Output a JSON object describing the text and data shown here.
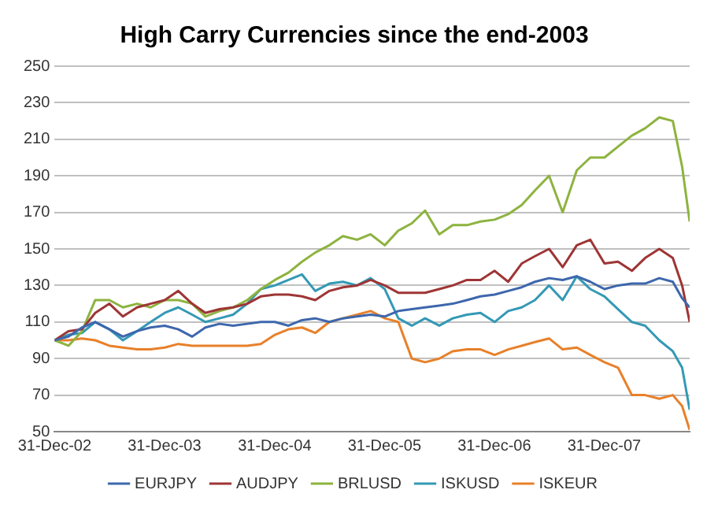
{
  "chart_data": {
    "type": "line",
    "title": "High Carry Currencies since the end-2003",
    "x": [
      "2002-12-31",
      "2003-02-15",
      "2003-04-01",
      "2003-05-15",
      "2003-07-01",
      "2003-08-15",
      "2003-10-01",
      "2003-11-15",
      "2004-01-01",
      "2004-02-15",
      "2004-04-01",
      "2004-05-15",
      "2004-07-01",
      "2004-08-15",
      "2004-10-01",
      "2004-11-15",
      "2005-01-01",
      "2005-02-15",
      "2005-04-01",
      "2005-05-15",
      "2005-07-01",
      "2005-08-15",
      "2005-10-01",
      "2005-11-15",
      "2006-01-01",
      "2006-02-15",
      "2006-04-01",
      "2006-05-15",
      "2006-07-01",
      "2006-08-15",
      "2006-10-01",
      "2006-11-15",
      "2007-01-01",
      "2007-02-15",
      "2007-04-01",
      "2007-05-15",
      "2007-07-01",
      "2007-08-15",
      "2007-10-01",
      "2007-11-15",
      "2008-01-01",
      "2008-02-15",
      "2008-04-01",
      "2008-05-15",
      "2008-07-01",
      "2008-08-15",
      "2008-09-15",
      "2008-10-10"
    ],
    "series": [
      {
        "name": "EURJPY",
        "color": "#3d67ad",
        "values": [
          100,
          102,
          107,
          110,
          106,
          102,
          105,
          107,
          108,
          106,
          102,
          107,
          109,
          108,
          109,
          110,
          110,
          108,
          111,
          112,
          110,
          112,
          113,
          114,
          113,
          116,
          117,
          118,
          119,
          120,
          122,
          124,
          125,
          127,
          129,
          132,
          134,
          133,
          135,
          132,
          128,
          130,
          131,
          131,
          134,
          132,
          123,
          118
        ]
      },
      {
        "name": "AUDJPY",
        "color": "#9e3535",
        "values": [
          100,
          105,
          106,
          115,
          120,
          113,
          118,
          120,
          122,
          127,
          120,
          115,
          117,
          118,
          120,
          124,
          125,
          125,
          124,
          122,
          127,
          129,
          130,
          133,
          130,
          126,
          126,
          126,
          128,
          130,
          133,
          133,
          138,
          132,
          142,
          146,
          150,
          140,
          152,
          155,
          142,
          143,
          138,
          145,
          150,
          145,
          130,
          110
        ]
      },
      {
        "name": "BRLUSD",
        "color": "#8db33f",
        "values": [
          100,
          97,
          105,
          122,
          122,
          118,
          120,
          118,
          122,
          122,
          120,
          113,
          116,
          118,
          122,
          128,
          133,
          137,
          143,
          148,
          152,
          157,
          155,
          158,
          152,
          160,
          164,
          171,
          158,
          163,
          163,
          165,
          166,
          169,
          174,
          182,
          190,
          170,
          193,
          200,
          200,
          206,
          212,
          216,
          222,
          220,
          195,
          165
        ]
      },
      {
        "name": "ISKUSD",
        "color": "#3399b5",
        "values": [
          100,
          103,
          104,
          110,
          106,
          100,
          105,
          110,
          115,
          118,
          114,
          110,
          112,
          114,
          120,
          128,
          130,
          133,
          136,
          127,
          131,
          132,
          130,
          134,
          128,
          112,
          108,
          112,
          108,
          112,
          114,
          115,
          110,
          116,
          118,
          122,
          130,
          122,
          135,
          128,
          124,
          117,
          110,
          108,
          100,
          94,
          85,
          62
        ]
      },
      {
        "name": "ISKEUR",
        "color": "#e8802a",
        "values": [
          100,
          100,
          101,
          100,
          97,
          96,
          95,
          95,
          96,
          98,
          97,
          97,
          97,
          97,
          97,
          98,
          103,
          106,
          107,
          104,
          110,
          112,
          114,
          116,
          112,
          110,
          90,
          88,
          90,
          94,
          95,
          95,
          92,
          95,
          97,
          99,
          101,
          95,
          96,
          92,
          88,
          85,
          70,
          70,
          68,
          70,
          64,
          51
        ]
      }
    ],
    "xlim": [
      "2002-12-31",
      "2008-10-10"
    ],
    "xticks": [
      {
        "value": "2002-12-31",
        "label": "31-Dec-02"
      },
      {
        "value": "2003-12-31",
        "label": "31-Dec-03"
      },
      {
        "value": "2004-12-31",
        "label": "31-Dec-04"
      },
      {
        "value": "2005-12-31",
        "label": "31-Dec-05"
      },
      {
        "value": "2006-12-31",
        "label": "31-Dec-06"
      },
      {
        "value": "2007-12-31",
        "label": "31-Dec-07"
      }
    ],
    "ylim": [
      50,
      250
    ],
    "yticks": [
      50,
      70,
      90,
      110,
      130,
      150,
      170,
      190,
      210,
      230,
      250
    ],
    "grid": "y",
    "legend": "bottom",
    "marker": "none",
    "line_style": "solid"
  }
}
